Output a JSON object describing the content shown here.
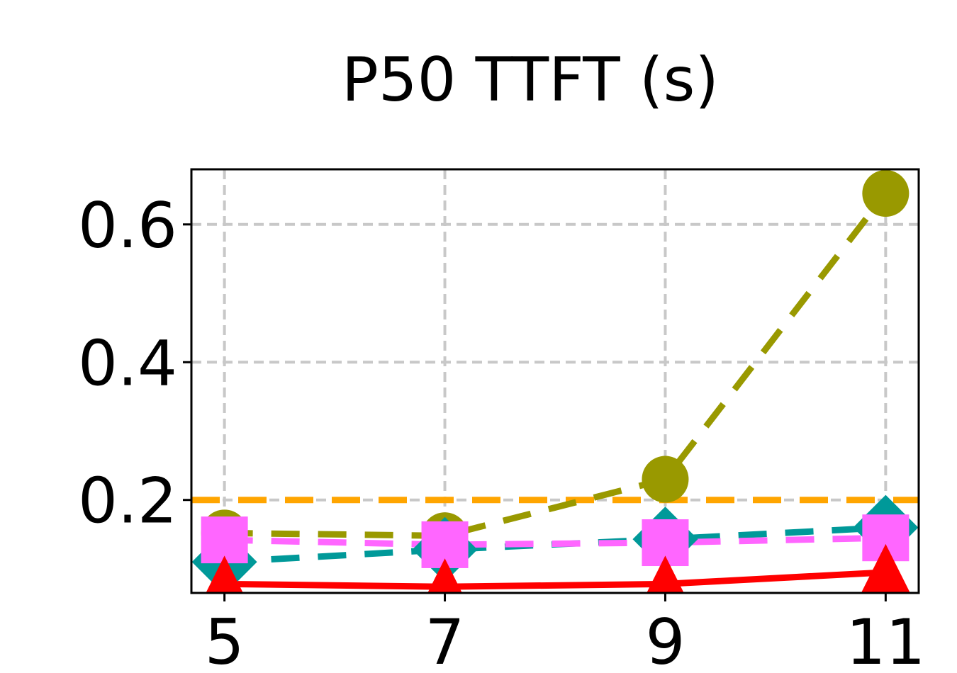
{
  "chart_data": {
    "type": "line",
    "title": "P50 TTFT (s)",
    "xlabel": "",
    "ylabel": "",
    "x": [
      5,
      7,
      9,
      11
    ],
    "xlim": [
      4.7,
      11.3
    ],
    "ylim": [
      0.065,
      0.68
    ],
    "xticks": [
      "5",
      "7",
      "9",
      "11"
    ],
    "yticks": [
      {
        "value": 0.2,
        "label": "0.2"
      },
      {
        "value": 0.4,
        "label": "0.4"
      },
      {
        "value": 0.6,
        "label": "0.6"
      }
    ],
    "grid": true,
    "series": [
      {
        "values": [
          0.152,
          0.148,
          0.23,
          0.645
        ],
        "color": "#999900",
        "dash": "dashed",
        "marker": "circle"
      },
      {
        "values": [
          0.11,
          0.128,
          0.143,
          0.16
        ],
        "color": "#009999",
        "dash": "dashed",
        "marker": "diamond"
      },
      {
        "values": [
          0.142,
          0.135,
          0.138,
          0.145
        ],
        "color": "#ff66ff",
        "dash": "dashed",
        "marker": "square"
      },
      {
        "values": [
          0.078,
          0.074,
          0.078,
          0.095
        ],
        "color": "#ff0000",
        "dash": "solid",
        "marker": "triangle"
      }
    ],
    "reference_lines": [
      {
        "value": 0.2,
        "color": "#ffa500",
        "dash": "dashed"
      }
    ]
  }
}
